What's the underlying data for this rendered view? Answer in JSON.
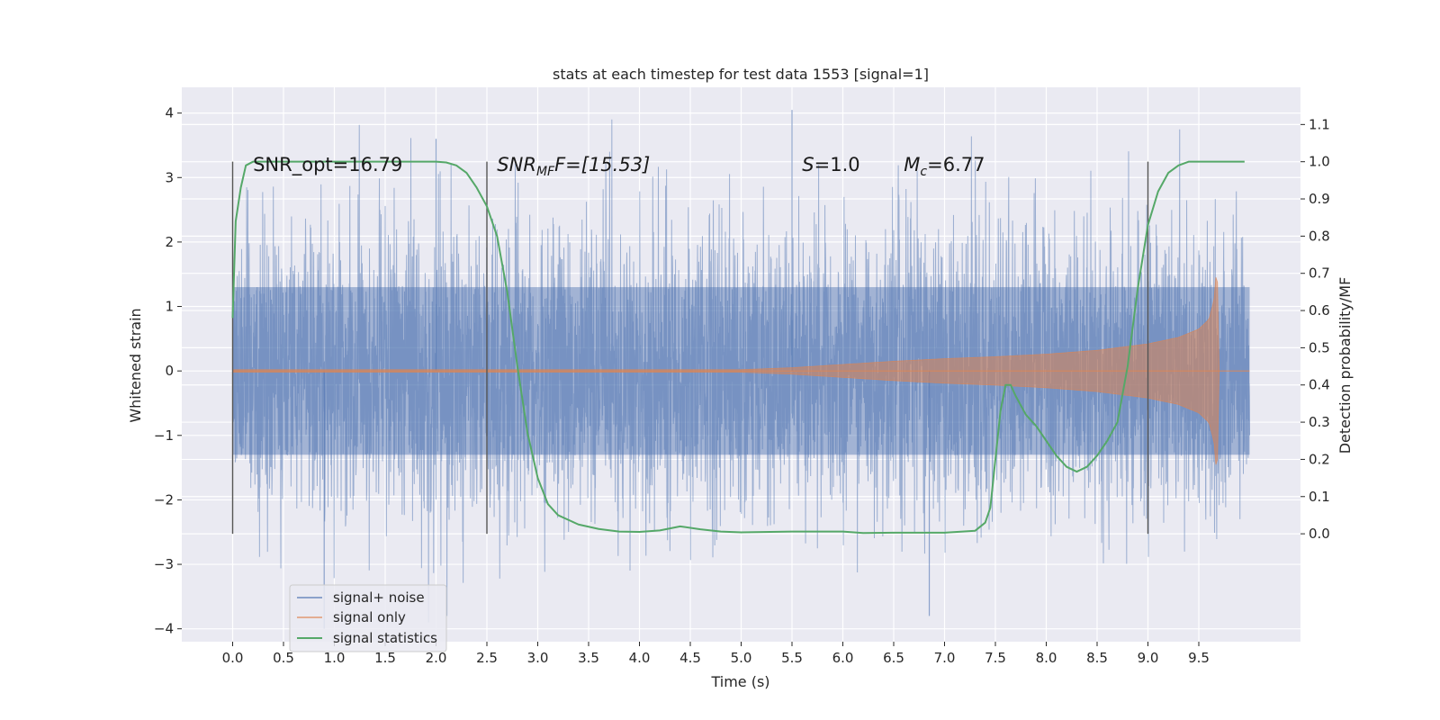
{
  "chart_data": {
    "type": "line",
    "title": "stats at each timestep for test data 1553 [signal=1]",
    "xlabel": "Time (s)",
    "ylabel": "Whitened strain",
    "y2label": "Detection probability/MF",
    "xlim": [
      -0.5,
      10.5
    ],
    "ylim": [
      -4.2,
      4.4
    ],
    "y2lim": [
      -0.29,
      1.2
    ],
    "xticks": [
      0.0,
      0.5,
      1.0,
      1.5,
      2.0,
      2.5,
      3.0,
      3.5,
      4.0,
      4.5,
      5.0,
      5.5,
      6.0,
      6.5,
      7.0,
      7.5,
      8.0,
      8.5,
      9.0,
      9.5
    ],
    "xtick_labels": [
      "0.0",
      "0.5",
      "1.0",
      "1.5",
      "2.0",
      "2.5",
      "3.0",
      "3.5",
      "4.0",
      "4.5",
      "5.0",
      "5.5",
      "6.0",
      "6.5",
      "7.0",
      "7.5",
      "8.0",
      "8.5",
      "9.0",
      "9.5"
    ],
    "yticks": [
      4,
      3,
      2,
      1,
      0,
      -1,
      -2,
      -3,
      -4
    ],
    "ytick_labels": [
      "4",
      "3",
      "2",
      "1",
      "0",
      "−1",
      "−2",
      "−3",
      "−4"
    ],
    "y2ticks": [
      1.1,
      1.0,
      0.9,
      0.8,
      0.7,
      0.6,
      0.5,
      0.4,
      0.3,
      0.2,
      0.1,
      0.0
    ],
    "y2tick_labels": [
      "1.1",
      "1.0",
      "0.9",
      "0.8",
      "0.7",
      "0.6",
      "0.5",
      "0.4",
      "0.3",
      "0.2",
      "0.1",
      "0.0"
    ],
    "grid": true,
    "legend_placement": "lower-left",
    "colors": {
      "noise": "#4c72b0",
      "signal": "#dd8452",
      "stats": "#55a868",
      "background": "#eaeaf2",
      "grid": "#ffffff",
      "vline": "#555555"
    },
    "series": [
      {
        "name": "signal+ noise",
        "kind": "noisy-strain",
        "x_range": [
          0.0,
          10.0
        ],
        "typical_amplitude": 1.3,
        "peak_values": [
          4.05,
          -4.0,
          3.6,
          -3.8
        ]
      },
      {
        "name": "signal only",
        "kind": "chirp",
        "x_range": [
          0.0,
          9.7
        ],
        "envelope": {
          "x": [
            0.0,
            5.0,
            5.5,
            6.0,
            6.5,
            7.0,
            7.5,
            8.0,
            8.5,
            9.0,
            9.3,
            9.5,
            9.6,
            9.65,
            9.68,
            9.7
          ],
          "amp": [
            0.02,
            0.02,
            0.05,
            0.1,
            0.15,
            0.19,
            0.22,
            0.26,
            0.32,
            0.42,
            0.52,
            0.65,
            0.8,
            1.1,
            1.7,
            0.0
          ]
        }
      },
      {
        "name": "signal statistics",
        "kind": "probability",
        "x": [
          0.0,
          0.03,
          0.08,
          0.13,
          0.2,
          0.3,
          0.5,
          1.0,
          1.5,
          2.0,
          2.1,
          2.2,
          2.3,
          2.4,
          2.5,
          2.6,
          2.7,
          2.8,
          2.9,
          3.0,
          3.1,
          3.2,
          3.4,
          3.6,
          3.8,
          4.0,
          4.2,
          4.4,
          4.6,
          4.8,
          5.0,
          5.5,
          6.0,
          6.2,
          6.5,
          7.0,
          7.3,
          7.4,
          7.45,
          7.5,
          7.55,
          7.6,
          7.65,
          7.7,
          7.8,
          7.9,
          8.0,
          8.1,
          8.2,
          8.3,
          8.4,
          8.5,
          8.6,
          8.7,
          8.8,
          8.9,
          9.0,
          9.1,
          9.2,
          9.3,
          9.4,
          9.6,
          9.8,
          9.95
        ],
        "y": [
          0.58,
          0.84,
          0.93,
          0.99,
          1.0,
          1.0,
          1.0,
          1.0,
          1.0,
          1.0,
          0.998,
          0.99,
          0.97,
          0.93,
          0.88,
          0.8,
          0.65,
          0.45,
          0.27,
          0.15,
          0.08,
          0.05,
          0.025,
          0.013,
          0.006,
          0.005,
          0.009,
          0.02,
          0.012,
          0.006,
          0.004,
          0.006,
          0.006,
          0.002,
          0.003,
          0.003,
          0.008,
          0.03,
          0.07,
          0.2,
          0.33,
          0.4,
          0.4,
          0.37,
          0.32,
          0.29,
          0.25,
          0.21,
          0.18,
          0.167,
          0.18,
          0.21,
          0.25,
          0.3,
          0.45,
          0.66,
          0.83,
          0.92,
          0.97,
          0.99,
          1.0,
          1.0,
          1.0,
          1.0
        ]
      }
    ],
    "vlines": [
      0.0,
      2.5,
      9.0
    ],
    "annotations": [
      {
        "key": "snr_opt",
        "text": "SNR_opt=16.79",
        "x": 0.2,
        "y": 3.2
      },
      {
        "key": "snr_mf",
        "main": "SNR",
        "sub": "MF",
        "rest": "F=[15.53]",
        "x": 2.6,
        "y": 3.2
      },
      {
        "key": "s",
        "main": "S",
        "rest": "=1.0",
        "x": 5.6,
        "y": 3.2
      },
      {
        "key": "mc",
        "main": "M",
        "sub": "c",
        "rest": "=6.77",
        "x": 6.6,
        "y": 3.2
      }
    ]
  }
}
